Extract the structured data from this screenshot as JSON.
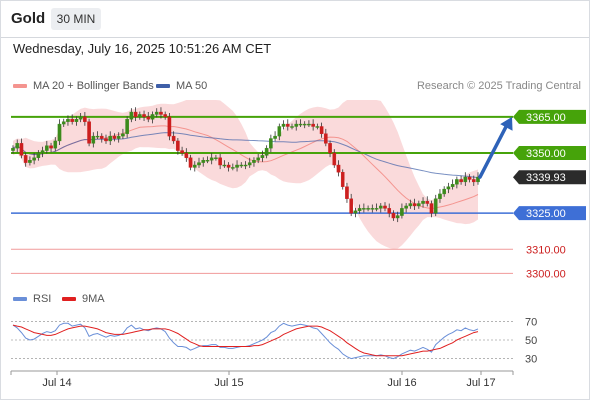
{
  "header": {
    "symbol": "Gold",
    "timeframe": "30 MIN",
    "datetime": "Wednesday, July 16, 2025 10:51:26 AM CET"
  },
  "legend": {
    "ma20": {
      "label": "MA 20 + Bollinger Bands",
      "color": "#f4948f"
    },
    "ma50": {
      "label": "MA 50",
      "color": "#3f5fa8"
    }
  },
  "credit": "Research © 2025 Trading Central",
  "rsi_legend": {
    "rsi": {
      "label": "RSI",
      "color": "#6a8fd8"
    },
    "ma9": {
      "label": "9MA",
      "color": "#e02020"
    }
  },
  "colors": {
    "bull": "#3c8a1c",
    "bear": "#cc1f1f",
    "bbFill": "#f9d1d2",
    "resistance": "#46a30a",
    "support": "#3e6fd6",
    "target": "#2e62b8"
  },
  "chart_data": [
    {
      "type": "candlestick",
      "instrument": "Gold",
      "timeframe": "30 MIN",
      "x_ticks": [
        "Jul 14",
        "Jul 15",
        "Jul 16",
        "Jul 17"
      ],
      "ylim": [
        3296,
        3372
      ],
      "levels": [
        {
          "value": 3365.0,
          "label": "3365.00",
          "kind": "resistance"
        },
        {
          "value": 3350.0,
          "label": "3350.00",
          "kind": "resistance"
        },
        {
          "value": 3339.93,
          "label": "3339.93",
          "kind": "last"
        },
        {
          "value": 3325.0,
          "label": "3325.00",
          "kind": "support"
        },
        {
          "value": 3310.0,
          "label": "3310.00",
          "kind": "minor"
        },
        {
          "value": 3300.0,
          "label": "3300.00",
          "kind": "minor"
        }
      ],
      "forecast_arrow": {
        "from": 3340,
        "to": 3365
      },
      "close": [
        3352,
        3354,
        3349,
        3346,
        3347,
        3348,
        3350,
        3351,
        3353,
        3352,
        3355,
        3362,
        3363,
        3364,
        3363,
        3364,
        3365,
        3363,
        3354,
        3357,
        3357,
        3356,
        3355,
        3357,
        3356,
        3357,
        3358,
        3364,
        3367,
        3365,
        3366,
        3365,
        3364,
        3366,
        3367,
        3366,
        3365,
        3357,
        3355,
        3351,
        3350,
        3348,
        3344,
        3345,
        3346,
        3347,
        3347,
        3348,
        3348,
        3345,
        3345,
        3344,
        3344,
        3345,
        3345,
        3345,
        3346,
        3347,
        3348,
        3349,
        3352,
        3356,
        3357,
        3361,
        3362,
        3361,
        3361,
        3362,
        3362,
        3362,
        3362,
        3361,
        3361,
        3358,
        3354,
        3350,
        3345,
        3342,
        3336,
        3331,
        3325,
        3326,
        3327,
        3327,
        3327,
        3327,
        3327,
        3328,
        3327,
        3325,
        3323,
        3324,
        3327,
        3328,
        3329,
        3328,
        3329,
        3330,
        3329,
        3325,
        3331,
        3333,
        3335,
        3336,
        3337,
        3339,
        3338,
        3340,
        3339,
        3338,
        3340
      ],
      "ma50_value_at_end": 3339,
      "bands": {
        "upper_max": 3372,
        "lower_min": 3321
      }
    },
    {
      "type": "line",
      "name": "RSI panel",
      "y_ticks": [
        70,
        50,
        30
      ],
      "ylim": [
        22,
        78
      ],
      "rsi": [
        66,
        63,
        58,
        52,
        50,
        51,
        54,
        57,
        59,
        58,
        60,
        66,
        68,
        68,
        65,
        66,
        67,
        63,
        54,
        56,
        57,
        55,
        53,
        55,
        54,
        55,
        57,
        63,
        66,
        62,
        63,
        61,
        60,
        62,
        63,
        62,
        59,
        52,
        47,
        43,
        43,
        42,
        39,
        41,
        43,
        44,
        44,
        45,
        45,
        42,
        42,
        41,
        41,
        42,
        43,
        43,
        44,
        46,
        48,
        50,
        53,
        58,
        60,
        65,
        68,
        66,
        65,
        66,
        67,
        66,
        65,
        63,
        62,
        57,
        52,
        47,
        43,
        40,
        35,
        32,
        30,
        31,
        32,
        33,
        33,
        33,
        33,
        34,
        33,
        31,
        30,
        32,
        35,
        37,
        39,
        38,
        40,
        42,
        40,
        37,
        45,
        49,
        53,
        56,
        58,
        61,
        60,
        63,
        61,
        60,
        62
      ],
      "ma9": [
        66,
        65,
        64,
        62,
        60,
        58,
        57,
        56,
        55,
        55,
        56,
        58,
        60,
        62,
        63,
        64,
        65,
        65,
        64,
        63,
        62,
        60,
        58,
        57,
        56,
        56,
        56,
        57,
        58,
        59,
        60,
        61,
        61,
        62,
        62,
        62,
        62,
        61,
        59,
        57,
        54,
        51,
        48,
        46,
        44,
        43,
        43,
        43,
        43,
        43,
        43,
        43,
        43,
        43,
        43,
        43,
        43,
        44,
        44,
        45,
        47,
        49,
        51,
        53,
        56,
        58,
        60,
        62,
        63,
        64,
        65,
        65,
        65,
        64,
        62,
        60,
        57,
        54,
        51,
        47,
        44,
        41,
        38,
        36,
        35,
        34,
        33,
        33,
        33,
        33,
        33,
        33,
        33,
        34,
        35,
        36,
        37,
        38,
        38,
        39,
        40,
        41,
        43,
        45,
        47,
        50,
        52,
        54,
        56,
        58,
        59
      ]
    }
  ]
}
